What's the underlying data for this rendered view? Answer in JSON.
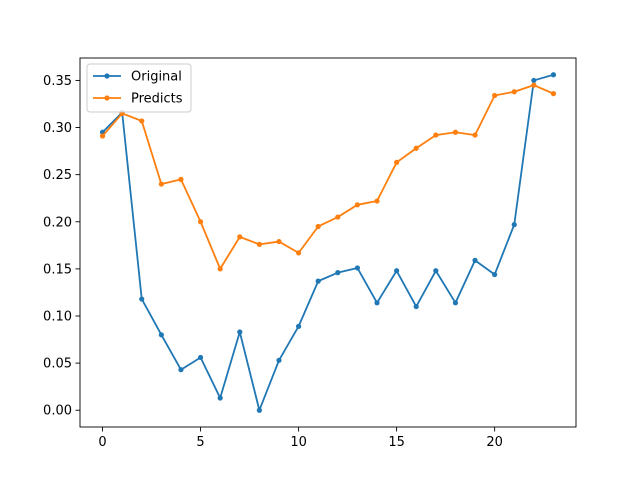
{
  "chart_data": {
    "type": "line",
    "title": "",
    "xlabel": "",
    "ylabel": "",
    "x": [
      0,
      1,
      2,
      3,
      4,
      5,
      6,
      7,
      8,
      9,
      10,
      11,
      12,
      13,
      14,
      15,
      16,
      17,
      18,
      19,
      20,
      21,
      22,
      23
    ],
    "xlim": [
      -1.15,
      24.15
    ],
    "ylim": [
      -0.0178,
      0.3738
    ],
    "xticks": [
      0,
      5,
      10,
      15,
      20
    ],
    "xtick_labels": [
      "0",
      "5",
      "10",
      "15",
      "20"
    ],
    "yticks": [
      0.0,
      0.05,
      0.1,
      0.15,
      0.2,
      0.25,
      0.3,
      0.35
    ],
    "ytick_labels": [
      "0.00",
      "0.05",
      "0.10",
      "0.15",
      "0.20",
      "0.25",
      "0.30",
      "0.35"
    ],
    "grid": false,
    "legend": "top-left",
    "series": [
      {
        "name": "Original",
        "color": "#1f77b4",
        "marker": "circle",
        "values": [
          0.295,
          0.316,
          0.118,
          0.08,
          0.043,
          0.056,
          0.013,
          0.083,
          0.0,
          0.053,
          0.089,
          0.137,
          0.146,
          0.151,
          0.114,
          0.148,
          0.11,
          0.148,
          0.114,
          0.159,
          0.144,
          0.197,
          0.35,
          0.356
        ]
      },
      {
        "name": "Predicts",
        "color": "#ff7f0e",
        "marker": "circle",
        "values": [
          0.291,
          0.315,
          0.307,
          0.24,
          0.245,
          0.2,
          0.15,
          0.184,
          0.176,
          0.179,
          0.167,
          0.195,
          0.205,
          0.218,
          0.222,
          0.263,
          0.278,
          0.292,
          0.295,
          0.292,
          0.334,
          0.338,
          0.345,
          0.336
        ]
      }
    ]
  }
}
